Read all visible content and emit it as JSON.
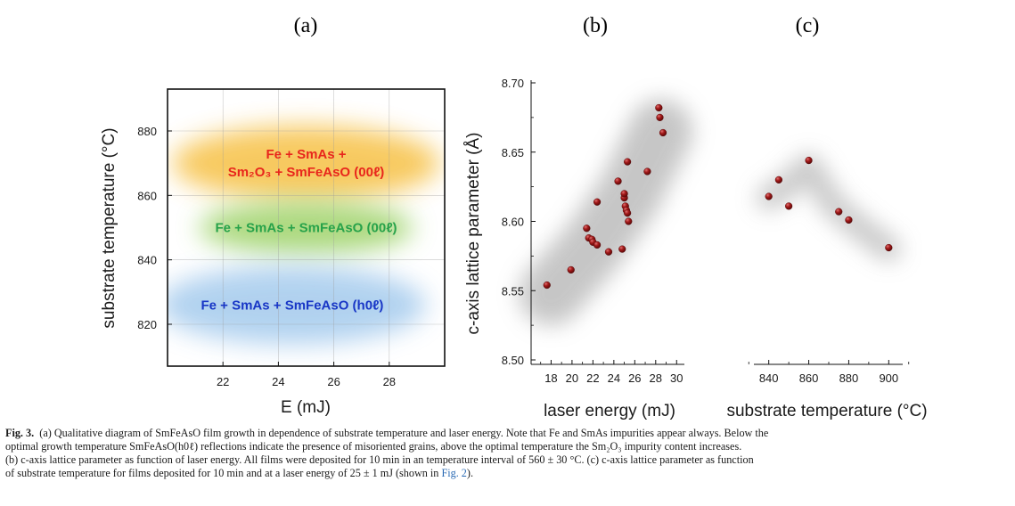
{
  "panel_labels": [
    "(a)",
    "(b)",
    "(c)"
  ],
  "chart_data": [
    {
      "type": "other",
      "panel": "(a)",
      "xlabel": "E (mJ)",
      "ylabel": "substrate temperature (°C)",
      "xticks": [
        "22",
        "24",
        "26",
        "28"
      ],
      "yticks": [
        "880",
        "860",
        "840",
        "820"
      ],
      "xlim": [
        20,
        30
      ],
      "ylim": [
        807,
        893
      ],
      "grid": true,
      "regions": [
        {
          "lines": [
            "Fe + SmAs +",
            "Sm₂O₃ + SmFeAsO (00ℓ)"
          ],
          "color": "#e8261c",
          "fill": "#f7c450",
          "center": [
            25,
            870
          ]
        },
        {
          "lines": [
            "Fe + SmAs + SmFeAsO (00ℓ)"
          ],
          "color": "#27a24a",
          "fill": "#9fd36b",
          "center": [
            25,
            850
          ]
        },
        {
          "lines": [
            "Fe + SmAs + SmFeAsO (h0ℓ)"
          ],
          "color": "#1836c6",
          "fill": "#a9cdee",
          "center": [
            24.5,
            826
          ]
        }
      ]
    },
    {
      "type": "scatter",
      "panel": "(b)",
      "xlabel": "laser energy (mJ)",
      "ylabel": "c-axis lattice parameter (Å)",
      "xticks": [
        "18",
        "20",
        "22",
        "24",
        "26",
        "28",
        "30"
      ],
      "yticks": [
        "8.50",
        "8.55",
        "8.60",
        "8.65",
        "8.70"
      ],
      "xlim": [
        16.6,
        31
      ],
      "ylim": [
        8.5,
        8.7
      ],
      "marker_color": "#8b1111",
      "points": [
        [
          17.6,
          8.554
        ],
        [
          19.9,
          8.565
        ],
        [
          21.4,
          8.595
        ],
        [
          21.6,
          8.588
        ],
        [
          21.9,
          8.587
        ],
        [
          22.0,
          8.585
        ],
        [
          22.4,
          8.583
        ],
        [
          22.4,
          8.614
        ],
        [
          23.5,
          8.578
        ],
        [
          24.4,
          8.629
        ],
        [
          24.8,
          8.58
        ],
        [
          25.0,
          8.617
        ],
        [
          25.0,
          8.62
        ],
        [
          25.1,
          8.611
        ],
        [
          25.2,
          8.608
        ],
        [
          25.3,
          8.606
        ],
        [
          25.3,
          8.643
        ],
        [
          25.4,
          8.6
        ],
        [
          27.2,
          8.636
        ],
        [
          28.3,
          8.682
        ],
        [
          28.4,
          8.675
        ],
        [
          28.7,
          8.664
        ]
      ]
    },
    {
      "type": "scatter",
      "panel": "(c)",
      "xlabel": "substrate temperature (°C)",
      "ylabel": "",
      "xticks": [
        "840",
        "860",
        "880",
        "900"
      ],
      "xlim": [
        829,
        911
      ],
      "ylim": [
        8.5,
        8.7
      ],
      "marker_color": "#8b1111",
      "points": [
        [
          840,
          8.618
        ],
        [
          845,
          8.63
        ],
        [
          850,
          8.611
        ],
        [
          860,
          8.644
        ],
        [
          875,
          8.607
        ],
        [
          880,
          8.601
        ],
        [
          900,
          8.581
        ]
      ]
    }
  ],
  "caption": {
    "label": "Fig. 3.",
    "line1": "(a) Qualitative diagram of SmFeAsO film growth in dependence of substrate temperature and laser energy. Note that Fe and SmAs impurities appear always. Below the",
    "line2": "optimal growth temperature SmFeAsO(h0ℓ) reflections indicate the presence of misoriented grains, above the optimal temperature the Sm₂O₃ impurity content increases.",
    "line3": "(b) c-axis lattice parameter as function of laser energy. All films were deposited for 10 min in an temperature interval of 560 ± 30 °C. (c) c-axis lattice parameter as function",
    "line4_before": "of substrate temperature for films deposited for 10 min and at a laser energy of 25 ± 1 mJ (shown in",
    "line4_ref": "Fig. 2",
    "line4_after": ")."
  }
}
